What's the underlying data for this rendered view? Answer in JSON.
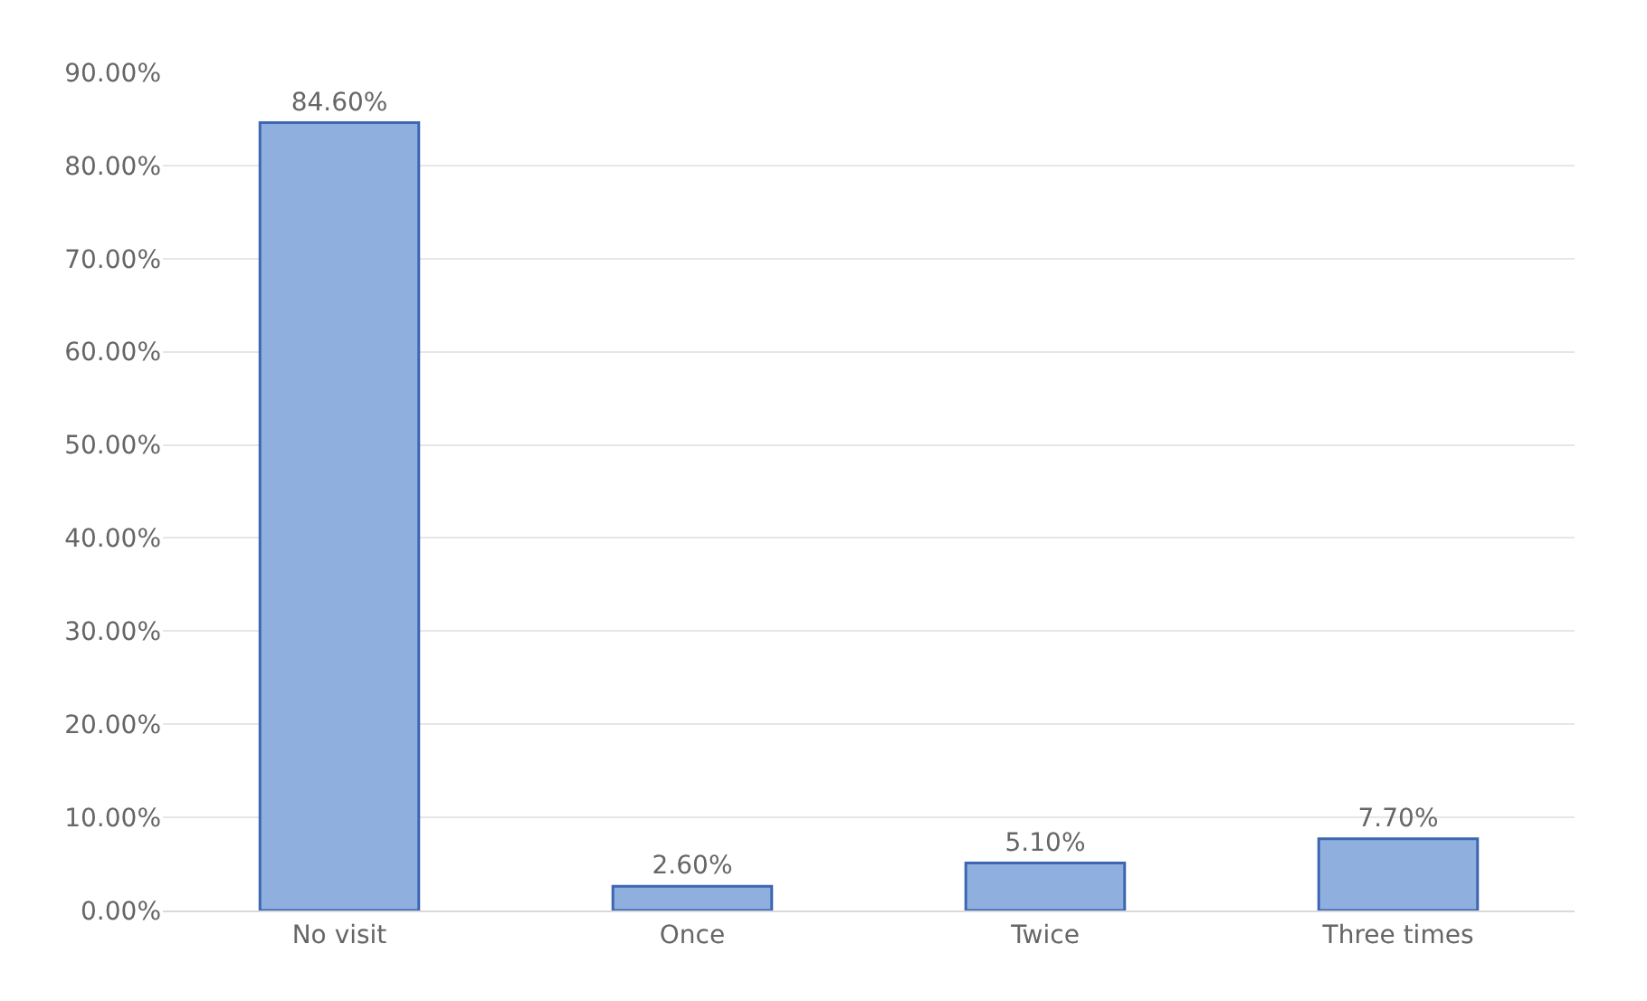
{
  "chart_data": {
    "type": "bar",
    "categories": [
      "No visit",
      "Once",
      "Twice",
      "Three times"
    ],
    "values": [
      84.6,
      2.6,
      5.1,
      7.7
    ],
    "value_labels": [
      "84.60%",
      "2.60%",
      "5.10%",
      "7.70%"
    ],
    "color": "#8fb0df",
    "ylim": [
      0,
      90
    ],
    "yticks": [
      {
        "value": 0,
        "label": "0.00%"
      },
      {
        "value": 10,
        "label": "10.00%"
      },
      {
        "value": 20,
        "label": "20.00%"
      },
      {
        "value": 30,
        "label": "30.00%"
      },
      {
        "value": 40,
        "label": "40.00%"
      },
      {
        "value": 50,
        "label": "50.00%"
      },
      {
        "value": 60,
        "label": "60.00%"
      },
      {
        "value": 70,
        "label": "70.00%"
      },
      {
        "value": 80,
        "label": "80.00%"
      },
      {
        "value": 90,
        "label": "90.00%"
      }
    ],
    "grid": "y"
  }
}
